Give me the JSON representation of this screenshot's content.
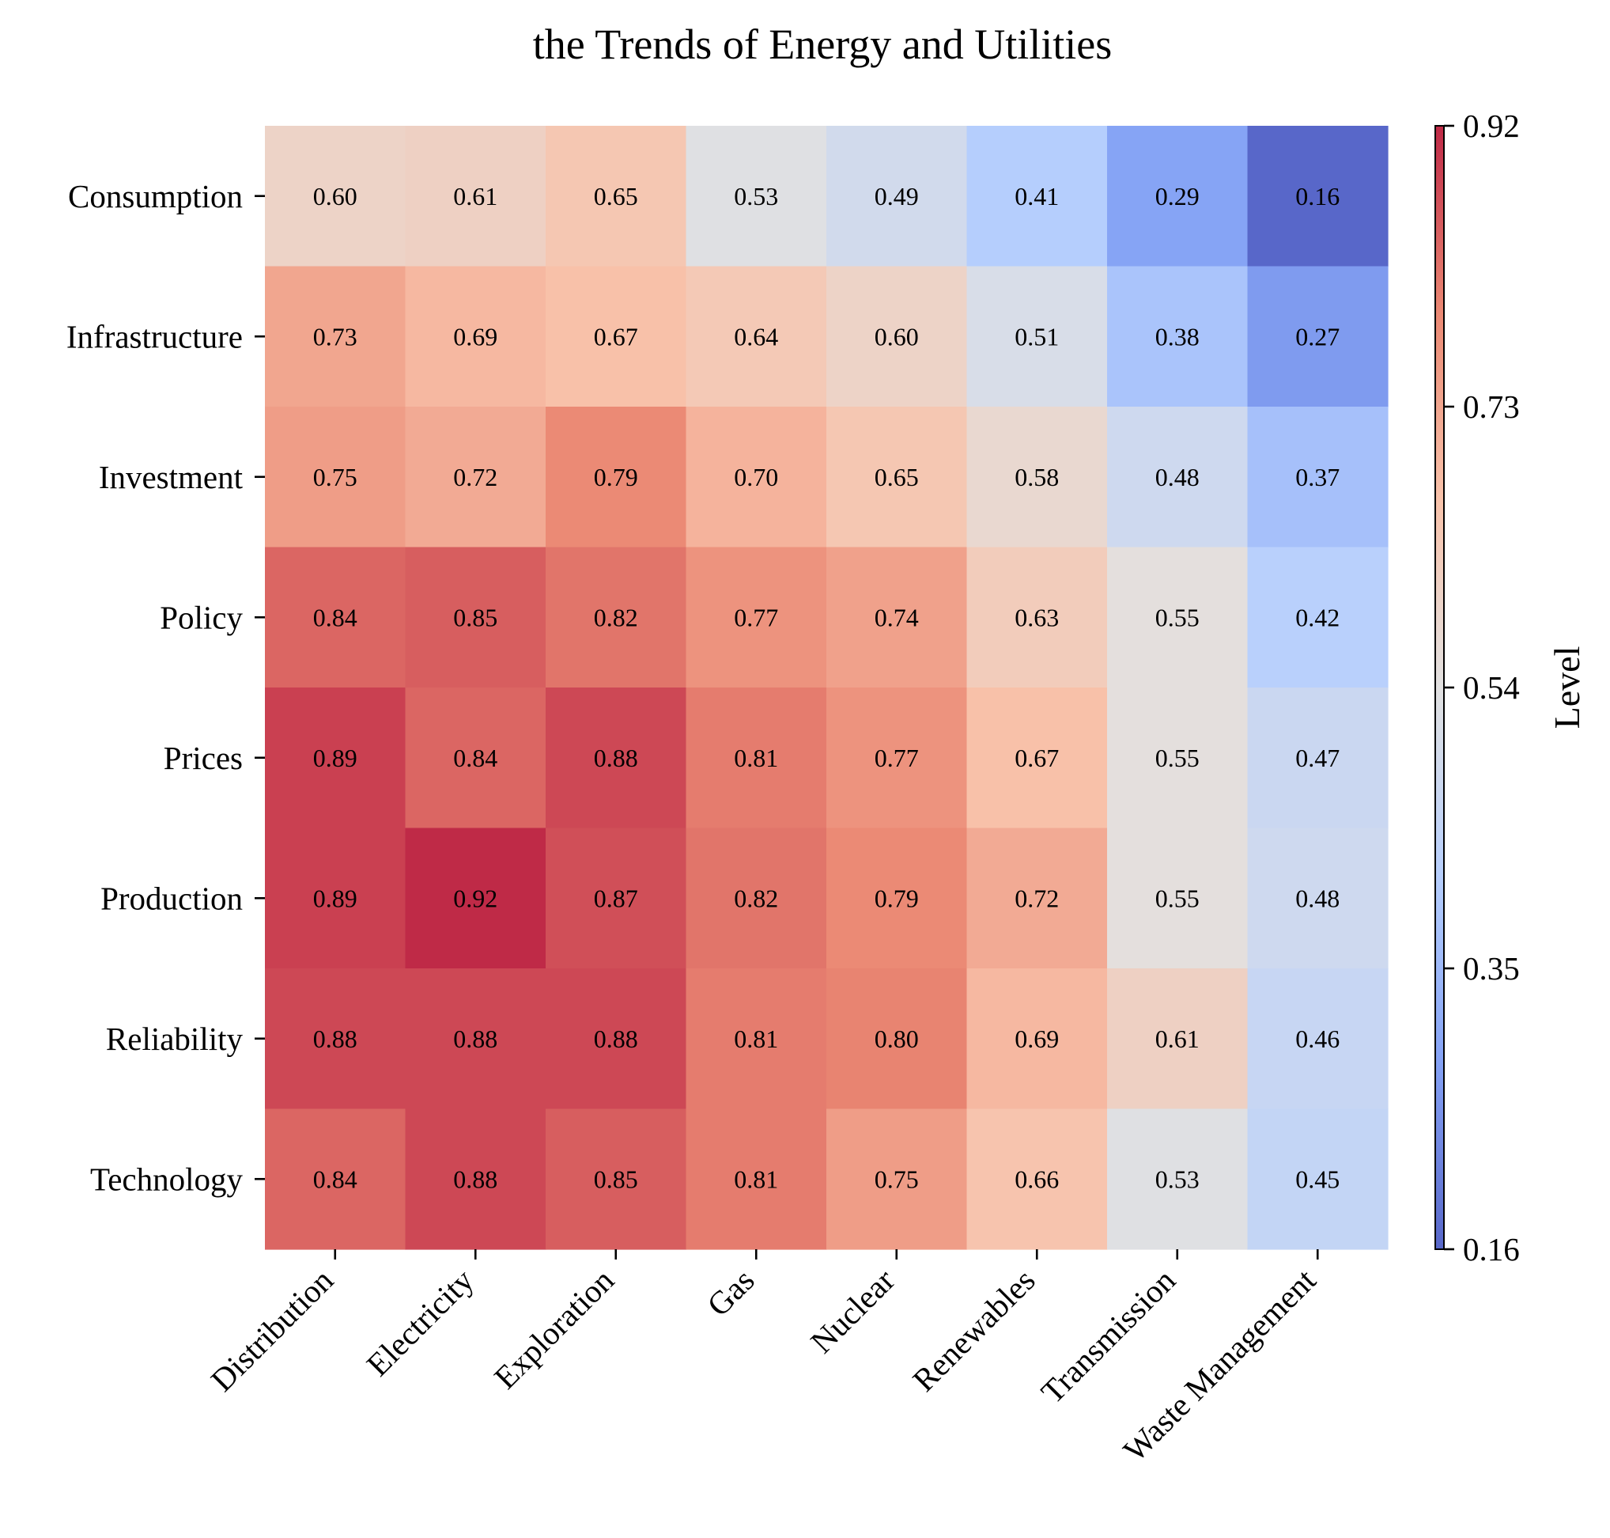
{
  "chart_data": {
    "type": "heatmap",
    "title": "the Trends of Energy and Utilities",
    "xlabel": "",
    "ylabel": "",
    "x_categories": [
      "Distribution",
      "Electricity",
      "Exploration",
      "Gas",
      "Nuclear",
      "Renewables",
      "Transmission",
      "Waste Management"
    ],
    "y_categories": [
      "Consumption",
      "Infrastructure",
      "Investment",
      "Policy",
      "Prices",
      "Production",
      "Reliability",
      "Technology"
    ],
    "values": [
      [
        0.6,
        0.61,
        0.65,
        0.53,
        0.49,
        0.41,
        0.29,
        0.16
      ],
      [
        0.73,
        0.69,
        0.67,
        0.64,
        0.6,
        0.51,
        0.38,
        0.27
      ],
      [
        0.75,
        0.72,
        0.79,
        0.7,
        0.65,
        0.58,
        0.48,
        0.37
      ],
      [
        0.84,
        0.85,
        0.82,
        0.77,
        0.74,
        0.63,
        0.55,
        0.42
      ],
      [
        0.89,
        0.84,
        0.88,
        0.81,
        0.77,
        0.67,
        0.55,
        0.47
      ],
      [
        0.89,
        0.92,
        0.87,
        0.82,
        0.79,
        0.72,
        0.55,
        0.48
      ],
      [
        0.88,
        0.88,
        0.88,
        0.81,
        0.8,
        0.69,
        0.61,
        0.46
      ],
      [
        0.84,
        0.88,
        0.85,
        0.81,
        0.75,
        0.66,
        0.53,
        0.45
      ]
    ],
    "value_format": "0.00",
    "colorbar": {
      "label": "Level",
      "range": [
        0.16,
        0.92
      ],
      "ticks": [
        "0.16",
        "0.35",
        "0.54",
        "0.73",
        "0.92"
      ],
      "colormap": "coolwarm"
    },
    "colormap_stops": [
      "#3b4cc0",
      "#6f92f3",
      "#aac7fd",
      "#dddcdc",
      "#f7b89c",
      "#e7745b",
      "#b40426"
    ],
    "cell_alpha": 0.85,
    "grid": false
  }
}
